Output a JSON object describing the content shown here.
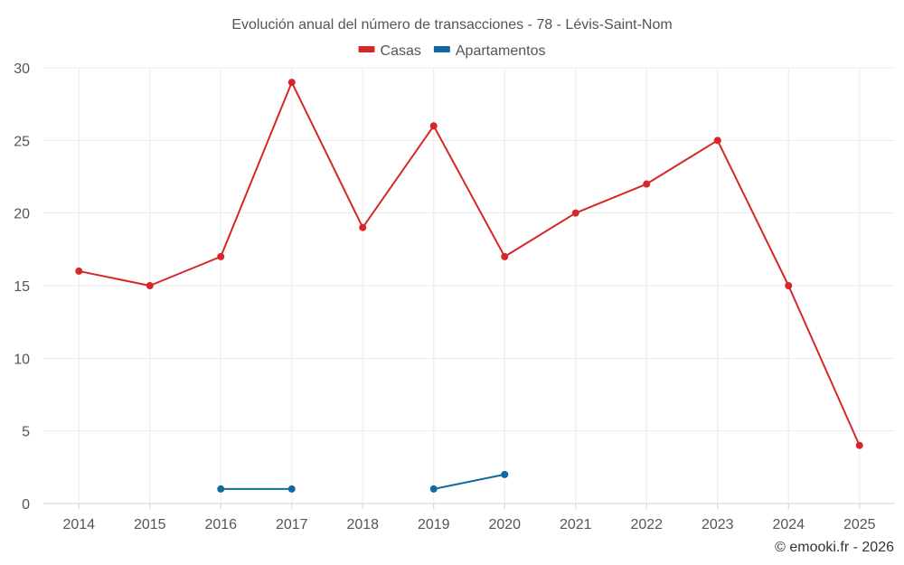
{
  "chart_data": {
    "type": "line",
    "title": "Evolución anual del número de transacciones - 78 - Lévis-Saint-Nom",
    "credit": "© emooki.fr - 2026",
    "categories": [
      "2014",
      "2015",
      "2016",
      "2017",
      "2018",
      "2019",
      "2020",
      "2021",
      "2022",
      "2023",
      "2024",
      "2025"
    ],
    "ylim": [
      0,
      30
    ],
    "yticks": [
      0,
      5,
      10,
      15,
      20,
      25,
      30
    ],
    "grid": true,
    "legend_position": "top-center",
    "series": [
      {
        "name": "Casas",
        "color": "#d62728",
        "values": [
          16,
          15,
          17,
          29,
          19,
          26,
          17,
          20,
          22,
          25,
          15,
          4
        ]
      },
      {
        "name": "Apartamentos",
        "color": "#0e6aa1",
        "values": [
          null,
          null,
          1,
          1,
          null,
          1,
          2,
          null,
          null,
          null,
          null,
          null
        ]
      }
    ]
  }
}
